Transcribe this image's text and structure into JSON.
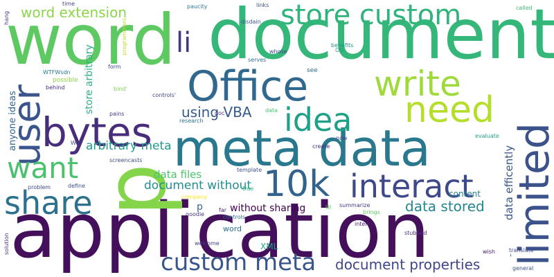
{
  "words": [
    {
      "text": "application",
      "color": "#440f5b"
    },
    {
      "text": "document",
      "color": "#35b779"
    },
    {
      "text": "word",
      "color": "#5ec962"
    },
    {
      "text": "p",
      "color": "#85d54a"
    },
    {
      "text": "meta data",
      "color": "#2a788e"
    },
    {
      "text": "Office",
      "color": "#31688e"
    },
    {
      "text": "limited",
      "color": "#3b528b"
    },
    {
      "text": "store custom",
      "color": "#2fb47c"
    },
    {
      "text": "10k",
      "color": "#33638d"
    },
    {
      "text": "interact",
      "color": "#3e4989"
    },
    {
      "text": "bytes",
      "color": "#472d7b"
    },
    {
      "text": "need",
      "color": "#b5de2b"
    },
    {
      "text": "write",
      "color": "#9fda3a"
    },
    {
      "text": "idea",
      "color": "#1fa187"
    },
    {
      "text": "user",
      "color": "#3a548c"
    },
    {
      "text": "share",
      "color": "#2c718e"
    },
    {
      "text": "want",
      "color": "#4ac16d"
    },
    {
      "text": "custom meta",
      "color": "#39568c"
    },
    {
      "text": "li",
      "color": "#443983"
    },
    {
      "text": "document properties",
      "color": "#404688"
    },
    {
      "text": "using VBA",
      "color": "#375a8c"
    },
    {
      "text": "data stored",
      "color": "#25858e"
    },
    {
      "text": "word extension",
      "color": "#8bd646"
    },
    {
      "text": "document without",
      "color": "#228d8d"
    },
    {
      "text": "anyone ideas",
      "color": "#32648e"
    },
    {
      "text": "arbitrary meta",
      "color": "#1e9b8a"
    },
    {
      "text": "data files",
      "color": "#4cc26c"
    },
    {
      "text": "data efficently",
      "color": "#39568c"
    },
    {
      "text": "store arbitrary",
      "color": "#2db27d"
    },
    {
      "text": "without sharing",
      "color": "#440154"
    },
    {
      "text": "content",
      "color": "#26828e"
    },
    {
      "text": "XML",
      "color": "#21a685"
    },
    {
      "text": "word",
      "color": "#2d708e"
    },
    {
      "text": "p",
      "color": "#31688e"
    },
    {
      "text": "interop",
      "color": "#481f70"
    },
    {
      "text": "summarize",
      "color": "#453781"
    },
    {
      "text": "stubbed",
      "color": "#472c7a"
    },
    {
      "text": "translate",
      "color": "#3f4788"
    },
    {
      "text": "general",
      "color": "#3b528b"
    },
    {
      "text": "wish",
      "color": "#481a6c"
    },
    {
      "text": "welcome",
      "color": "#424086"
    },
    {
      "text": "goodie",
      "color": "#46307e"
    },
    {
      "text": "controls",
      "color": "#2e6f8e"
    },
    {
      "text": "template",
      "color": "#3b528b"
    },
    {
      "text": "doc",
      "color": "#46337f"
    },
    {
      "text": "now",
      "color": "#3f4788"
    },
    {
      "text": "create",
      "color": "#472f7d"
    },
    {
      "text": "evaluate",
      "color": "#20a386"
    },
    {
      "text": "see",
      "color": "#2f6b8e"
    },
    {
      "text": "research",
      "color": "#2e6e8e"
    },
    {
      "text": "data",
      "color": "#46c06f"
    },
    {
      "text": "controls'",
      "color": "#3f4889"
    },
    {
      "text": "bind'",
      "color": "#7ad151"
    },
    {
      "text": "pains",
      "color": "#443983"
    },
    {
      "text": "possible",
      "color": "#8bd646"
    },
    {
      "text": "behind",
      "color": "#482878"
    },
    {
      "text": "WTFWsdn",
      "color": "#2a768e"
    },
    {
      "text": "form",
      "color": "#3d4d8a"
    },
    {
      "text": "screencasts",
      "color": "#3e4a89"
    },
    {
      "text": "define",
      "color": "#3b528b"
    },
    {
      "text": "problem",
      "color": "#3f4889"
    },
    {
      "text": "solution",
      "color": "#453882"
    },
    {
      "text": "Due",
      "color": "#31b57b"
    },
    {
      "text": "far",
      "color": "#482475"
    },
    {
      "text": "brings",
      "color": "#5ec962"
    },
    {
      "text": "company",
      "color": "#fde725"
    },
    {
      "text": "disdain",
      "color": "#3a548c"
    },
    {
      "text": "whose",
      "color": "#3f4889"
    },
    {
      "text": "paucity",
      "color": "#2a788e"
    },
    {
      "text": "links",
      "color": "#39568c"
    },
    {
      "text": "time",
      "color": "#424186"
    },
    {
      "text": "serves",
      "color": "#2e6e8e"
    },
    {
      "text": "benefits",
      "color": "#20928c"
    },
    {
      "text": "called",
      "color": "#3fbc73"
    },
    {
      "text": "hang",
      "color": "#433e85"
    },
    {
      "text": "programmers",
      "color": "#b8de29"
    },
    {
      "text": "OO",
      "color": "#1f9a8a"
    },
    {
      "text": "UI",
      "color": "#5ec962"
    },
    {
      "text": "Wo",
      "color": "#3e4a89"
    },
    {
      "text": "'",
      "color": "#2a788e"
    }
  ]
}
